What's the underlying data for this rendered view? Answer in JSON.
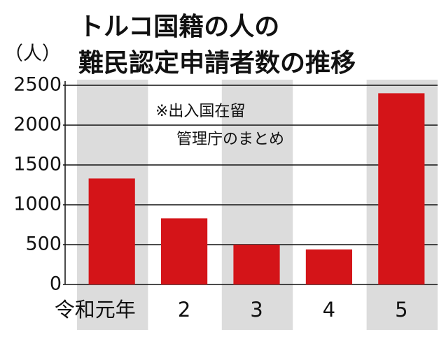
{
  "chart_data": {
    "type": "bar",
    "title": [
      "トルコ国籍の人の",
      "難民認定申請者数の推移"
    ],
    "y_label": "（人）",
    "annotation": [
      "※出入国在留",
      "管理庁のまとめ"
    ],
    "categories": [
      "令和元年",
      "2",
      "3",
      "4",
      "5"
    ],
    "values": [
      1330,
      830,
      500,
      440,
      2400
    ],
    "color": "#d41418",
    "ylim": [
      0,
      2500
    ],
    "yticks": [
      0,
      500,
      1000,
      1500,
      2000,
      2500
    ],
    "grid": true
  }
}
